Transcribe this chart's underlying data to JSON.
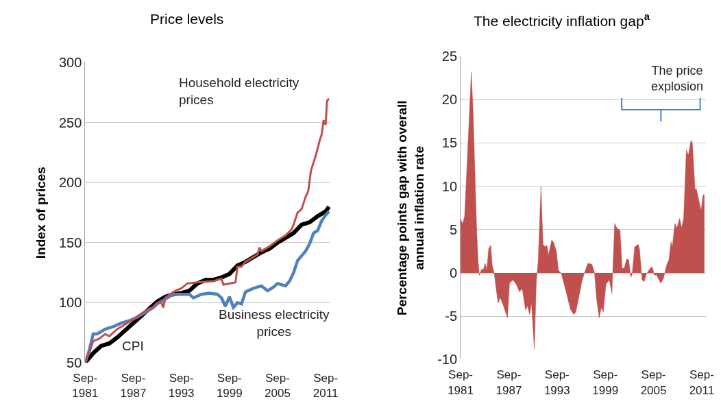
{
  "chart_data": [
    {
      "type": "line",
      "title": "Price levels",
      "ylabel": "Index of prices",
      "xlim": [
        "1981-09",
        "2012-04"
      ],
      "ylim": [
        50,
        300
      ],
      "yticks": [
        50,
        100,
        150,
        200,
        250,
        300
      ],
      "xticks": [
        {
          "value": "1981-09",
          "label": "Sep-\n1981"
        },
        {
          "value": "1987-09",
          "label": "Sep-\n1987"
        },
        {
          "value": "1993-09",
          "label": "Sep-\n1993"
        },
        {
          "value": "1999-09",
          "label": "Sep-\n1999"
        },
        {
          "value": "2005-09",
          "label": "Sep-\n2005"
        },
        {
          "value": "2011-09",
          "label": "Sep-\n2011"
        }
      ],
      "grid": "y",
      "legend": false,
      "marker": "none",
      "line_style": "solid",
      "series": [
        {
          "name": "CPI",
          "color": "#000000",
          "x": [
            "1981-09",
            "1982-09",
            "1983-09",
            "1984-09",
            "1985-09",
            "1986-09",
            "1987-09",
            "1988-09",
            "1989-09",
            "1990-09",
            "1991-09",
            "1992-09",
            "1993-09",
            "1994-09",
            "1995-09",
            "1996-09",
            "1997-09",
            "1998-09",
            "1999-09",
            "2000-09",
            "2001-09",
            "2002-09",
            "2003-09",
            "2004-09",
            "2005-09",
            "2006-09",
            "2007-09",
            "2008-09",
            "2009-09",
            "2010-09",
            "2011-09",
            "2012-02"
          ],
          "values": [
            50,
            58,
            64,
            66,
            71,
            77,
            83,
            89,
            95,
            101,
            105,
            107,
            108,
            110,
            116,
            119,
            119,
            121,
            124,
            131,
            134,
            138,
            142,
            145,
            150,
            154,
            158,
            165,
            167,
            172,
            176,
            180
          ]
        },
        {
          "name": "Business electricity\nprices",
          "color": "#4f81bd",
          "x": [
            "1981-09",
            "1982-03",
            "1982-09",
            "1983-03",
            "1984-03",
            "1985-03",
            "1986-03",
            "1987-03",
            "1988-03",
            "1989-03",
            "1990-03",
            "1990-09",
            "1991-09",
            "1992-09",
            "1993-09",
            "1994-09",
            "1995-03",
            "1996-03",
            "1997-03",
            "1998-03",
            "1998-09",
            "1999-03",
            "1999-09",
            "2000-03",
            "2000-09",
            "2001-03",
            "2001-09",
            "2002-09",
            "2003-09",
            "2004-06",
            "2005-03",
            "2005-09",
            "2006-09",
            "2007-03",
            "2007-09",
            "2008-03",
            "2008-09",
            "2009-03",
            "2009-09",
            "2010-03",
            "2010-09",
            "2011-03",
            "2011-09",
            "2012-02"
          ],
          "values": [
            50,
            60,
            74,
            74,
            78,
            80,
            83,
            85,
            88,
            92,
            96,
            99,
            103,
            107,
            107,
            107,
            104,
            107,
            108,
            107,
            104,
            97,
            105,
            96,
            100,
            99,
            109,
            112,
            114,
            110,
            113,
            116,
            114,
            118,
            125,
            135,
            139,
            143,
            149,
            158,
            160,
            168,
            173,
            176
          ]
        },
        {
          "name": "Household electricity\nprices",
          "color": "#c0504d",
          "x": [
            "1981-09",
            "1982-03",
            "1982-09",
            "1983-06",
            "1984-03",
            "1984-09",
            "1985-09",
            "1986-09",
            "1987-09",
            "1988-09",
            "1989-09",
            "1990-03",
            "1990-09",
            "1991-03",
            "1991-06",
            "1991-09",
            "1992-09",
            "1993-09",
            "1994-06",
            "1995-09",
            "1997-09",
            "1998-09",
            "1998-12",
            "1999-09",
            "2000-06",
            "2000-09",
            "2001-03",
            "2001-09",
            "2003-03",
            "2003-06",
            "2003-09",
            "2004-09",
            "2005-09",
            "2006-09",
            "2007-06",
            "2007-09",
            "2008-03",
            "2008-09",
            "2009-03",
            "2009-07",
            "2009-11",
            "2010-06",
            "2010-12",
            "2011-03",
            "2011-06",
            "2011-09",
            "2011-11",
            "2012-02"
          ],
          "values": [
            50,
            58,
            68,
            70,
            74,
            72,
            78,
            82,
            86,
            91,
            95,
            96,
            100,
            100,
            96,
            104,
            109,
            112,
            116,
            117,
            118,
            120,
            115,
            116,
            117,
            130,
            130,
            134,
            140,
            146,
            143,
            147,
            152,
            156,
            161,
            165,
            175,
            178,
            188,
            193,
            210,
            222,
            235,
            240,
            252,
            248,
            268,
            270
          ]
        }
      ]
    },
    {
      "type": "area",
      "title": "The electricity inflation gap$^{a}$",
      "ylabel": "Percentage points gap with overall\nannual inflation rate",
      "xlim": [
        "1981-09",
        "2012-03"
      ],
      "ylim": [
        -10,
        25
      ],
      "yticks": [
        -10,
        -5,
        0,
        5,
        10,
        15,
        20,
        25
      ],
      "xticks": [
        {
          "value": "1981-09",
          "label": "Sep-\n1981"
        },
        {
          "value": "1987-09",
          "label": "Sep-\n1987"
        },
        {
          "value": "1993-09",
          "label": "Sep-\n1993"
        },
        {
          "value": "1999-09",
          "label": "Sep-\n1999"
        },
        {
          "value": "2005-09",
          "label": "Sep-\n2005"
        },
        {
          "value": "2011-09",
          "label": "Sep-\n2011"
        }
      ],
      "grid": "y",
      "legend": false,
      "annotations": [
        "The price\nexplosion"
      ],
      "series": [
        {
          "color": "#c0504d",
          "x": [
            "1981-09",
            "1981-12",
            "1982-03",
            "1982-07",
            "1983-01",
            "1983-04",
            "1983-07",
            "1983-09",
            "1983-11",
            "1984-01",
            "1984-04",
            "1984-07",
            "1984-10",
            "1984-12",
            "1985-03",
            "1985-06",
            "1985-08",
            "1985-11",
            "1986-05",
            "1986-08",
            "1987-01",
            "1987-07",
            "1987-10",
            "1988-03",
            "1988-08",
            "1989-01",
            "1989-05",
            "1989-10",
            "1990-01",
            "1990-04",
            "1990-07",
            "1990-11",
            "1991-02",
            "1991-05",
            "1991-09",
            "1991-12",
            "1992-03",
            "1992-06",
            "1992-08",
            "1993-01",
            "1993-04",
            "1993-08",
            "1993-11",
            "1994-03",
            "1994-10",
            "1995-05",
            "1995-10",
            "1996-01",
            "1996-05",
            "1996-10",
            "1997-01",
            "1997-07",
            "1998-01",
            "1998-05",
            "1998-08",
            "1998-12",
            "1999-03",
            "1999-06",
            "1999-10",
            "2000-03",
            "2000-07",
            "2000-08",
            "2000-11",
            "2001-02",
            "2001-07",
            "2001-10",
            "2002-01",
            "2002-05",
            "2002-08",
            "2002-11",
            "2003-01",
            "2003-05",
            "2003-10",
            "2003-12",
            "2004-04",
            "2004-07",
            "2004-10",
            "2005-01",
            "2005-06",
            "2005-08",
            "2005-10",
            "2006-01",
            "2006-08",
            "2006-12",
            "2007-05",
            "2007-08",
            "2007-11",
            "2008-01",
            "2008-05",
            "2008-08",
            "2008-12",
            "2009-03",
            "2009-06",
            "2009-10",
            "2010-01",
            "2010-05",
            "2010-07",
            "2010-11",
            "2011-01",
            "2011-08",
            "2011-11",
            "2012-01"
          ],
          "values": [
            6.2,
            5.7,
            6.5,
            13,
            23.2,
            18,
            10,
            5,
            1.5,
            -0.3,
            0.4,
            0.4,
            1.1,
            0.3,
            2.8,
            3.2,
            1,
            0,
            -3.5,
            -2.8,
            -3.8,
            -5.2,
            -1.2,
            -0.8,
            -1.3,
            -2.2,
            -1.8,
            -4.3,
            -3.8,
            -4.8,
            -3.5,
            -8.8,
            -1,
            1.5,
            10,
            3.3,
            3,
            3.2,
            2,
            3.8,
            3.5,
            2.5,
            0.3,
            0,
            -2,
            -4.2,
            -4.8,
            -4.5,
            -3,
            -1,
            -0.2,
            1.1,
            1,
            0,
            -3,
            -5.2,
            -4,
            -4.5,
            -1.3,
            -0.8,
            -2.4,
            0,
            5.7,
            5.2,
            4.9,
            0.6,
            0.5,
            1.6,
            1.5,
            -0.5,
            -0.2,
            3,
            3.3,
            2.8,
            -0.8,
            -1,
            -0.2,
            0.2,
            0.7,
            0.5,
            -0.3,
            -0.2,
            -1.2,
            -0.6,
            1,
            1.5,
            3.6,
            3,
            5.7,
            5.2,
            6.3,
            5.2,
            6.3,
            14.2,
            13.6,
            15.3,
            15,
            9.6,
            9.7,
            7.2,
            9,
            9
          ]
        }
      ]
    }
  ]
}
